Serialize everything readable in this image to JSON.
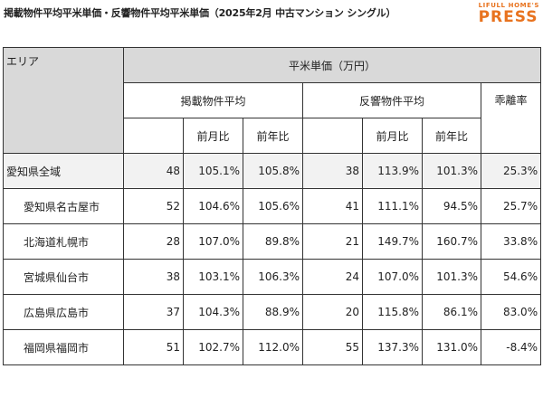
{
  "header": {
    "title": "掲載物件平均平米単価・反響物件平均平米単価（2025年2月 中古マンション シングル）",
    "logo_top": "LIFULL HOME'S",
    "logo_main": "PRESS"
  },
  "table": {
    "area_label": "エリア",
    "unit_label": "平米単価（万円）",
    "listed_label": "掲載物件平均",
    "inquired_label": "反響物件平均",
    "divergence_label": "乖離率",
    "mom_label": "前月比",
    "yoy_label": "前年比",
    "rows": [
      {
        "name": "愛知県全域",
        "listed": "48",
        "listed_mom": "105.1%",
        "listed_yoy": "105.8%",
        "inq": "38",
        "inq_mom": "113.9%",
        "inq_yoy": "101.3%",
        "div": "25.3%"
      },
      {
        "name": "愛知県名古屋市",
        "listed": "52",
        "listed_mom": "104.6%",
        "listed_yoy": "105.6%",
        "inq": "41",
        "inq_mom": "111.1%",
        "inq_yoy": "94.5%",
        "div": "25.7%"
      },
      {
        "name": "北海道札幌市",
        "listed": "28",
        "listed_mom": "107.0%",
        "listed_yoy": "89.8%",
        "inq": "21",
        "inq_mom": "149.7%",
        "inq_yoy": "160.7%",
        "div": "33.8%"
      },
      {
        "name": "宮城県仙台市",
        "listed": "38",
        "listed_mom": "103.1%",
        "listed_yoy": "106.3%",
        "inq": "24",
        "inq_mom": "107.0%",
        "inq_yoy": "101.3%",
        "div": "54.6%"
      },
      {
        "name": "広島県広島市",
        "listed": "37",
        "listed_mom": "104.3%",
        "listed_yoy": "88.9%",
        "inq": "20",
        "inq_mom": "115.8%",
        "inq_yoy": "86.1%",
        "div": "83.0%"
      },
      {
        "name": "福岡県福岡市",
        "listed": "51",
        "listed_mom": "102.7%",
        "listed_yoy": "112.0%",
        "inq": "55",
        "inq_mom": "137.3%",
        "inq_yoy": "131.0%",
        "div": "-8.4%"
      }
    ]
  }
}
